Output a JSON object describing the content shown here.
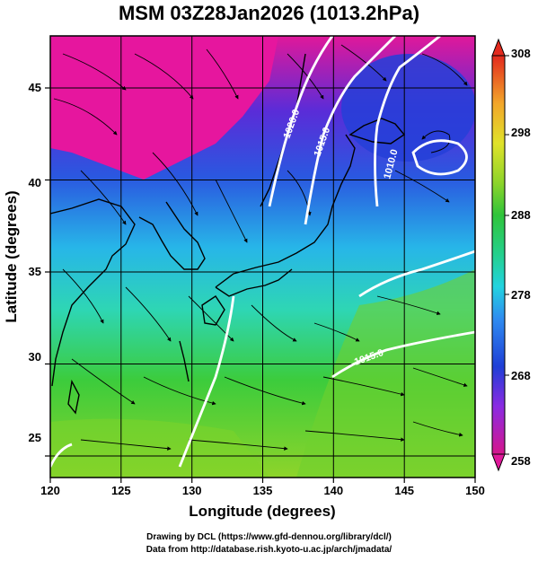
{
  "title": "MSM 03Z28Jan2026 (1013.2hPa)",
  "map": {
    "xlabel": "Longitude (degrees)",
    "ylabel": "Latitude  (degrees)",
    "x_ticks": [
      "120",
      "125",
      "130",
      "135",
      "140",
      "145",
      "150"
    ],
    "y_ticks": [
      "25",
      "30",
      "35",
      "40",
      "45"
    ],
    "lon_range": [
      120,
      150
    ],
    "lat_range": [
      22.4,
      47.6
    ],
    "isobar_labels": [
      "1020.0",
      "1015.0",
      "1010.0",
      "1015.0"
    ]
  },
  "colorbar": {
    "ticks": [
      "308",
      "298",
      "288",
      "278",
      "268",
      "258"
    ],
    "range": [
      258,
      308
    ],
    "colors": [
      "#d51a8a",
      "#8a2be2",
      "#1f3fd6",
      "#2f8cf0",
      "#22d3e0",
      "#22d08c",
      "#2fc43a",
      "#8cd42a",
      "#d6e22a",
      "#f2b22a",
      "#ef6a20",
      "#e32a1e"
    ]
  },
  "credits": {
    "line1": "Drawing by DCL (https://www.gfd-dennou.org/library/dcl/)",
    "line2": "Data from http://database.rish.kyoto-u.ac.jp/arch/jmadata/"
  }
}
